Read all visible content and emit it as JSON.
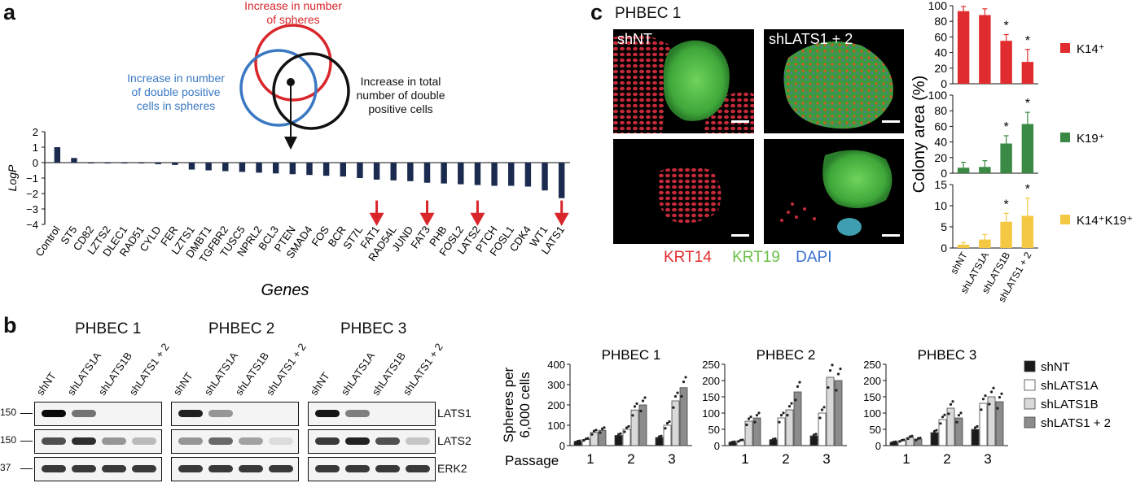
{
  "panels": {
    "a": "a",
    "b": "b",
    "c": "c"
  },
  "venn": {
    "red_label": "Increase in number of spheres",
    "red_lines": [
      "Increase in number",
      "of spheres"
    ],
    "blue_lines": [
      "Increase in number",
      "of double positive",
      "cells in spheres"
    ],
    "black_lines": [
      "Increase in total",
      "number of double",
      "positive cells"
    ],
    "colors": {
      "red": "#d9262b",
      "blue": "#3a78c2",
      "black": "#111111"
    }
  },
  "chart_data": [
    {
      "type": "bar",
      "panel": "a",
      "categories": [
        "Control",
        "ST5",
        "CD82",
        "LZTS2",
        "DLEC1",
        "RAD51",
        "CYLD",
        "FER",
        "LZTS1",
        "DMBT1",
        "TGFBR2",
        "TUSC5",
        "NPRL2",
        "BCL3",
        "PTEN",
        "SMAD4",
        "FOS",
        "BCR",
        "ST7L",
        "FAT1",
        "RAD54L",
        "JUND",
        "FAT3",
        "PHB",
        "FOSL2",
        "LATS2",
        "PTCH",
        "FOSL1",
        "CDK4",
        "WT1",
        "LATS1"
      ],
      "values": [
        1.0,
        0.3,
        -0.05,
        -0.05,
        -0.05,
        -0.05,
        -0.1,
        -0.15,
        -0.45,
        -0.5,
        -0.55,
        -0.6,
        -0.65,
        -0.7,
        -0.75,
        -0.8,
        -0.85,
        -0.9,
        -1.0,
        -1.1,
        -1.15,
        -1.2,
        -1.3,
        -1.35,
        -1.4,
        -1.45,
        -1.5,
        -1.5,
        -1.55,
        -1.8,
        -2.3
      ],
      "highlighted": [
        "FAT1",
        "FAT3",
        "LATS2",
        "LATS1"
      ],
      "xlabel": "Genes",
      "ylabel": "LogP",
      "ylim": [
        -4,
        2
      ],
      "yticks": [
        "2",
        "1",
        "0",
        "−1",
        "−2",
        "−3",
        "−4"
      ],
      "bar_color": "#1b2a4f",
      "arrow_color": "#d9262b"
    },
    {
      "type": "bar",
      "panel": "c",
      "ylabel": "Colony area (%)",
      "categories": [
        "shNT",
        "shLATS1A",
        "shLATS1B",
        "shLATS1 + 2"
      ],
      "subplots": [
        {
          "name": "K14",
          "sup": "+",
          "legend": "K14⁺",
          "color": "#e02b2f",
          "ylim": [
            0,
            100
          ],
          "yticks": [
            "0",
            "20",
            "40",
            "60",
            "80",
            "100"
          ],
          "values": [
            93,
            88,
            55,
            28
          ],
          "errors": [
            6,
            8,
            8,
            16
          ],
          "significant": [
            false,
            false,
            true,
            true
          ]
        },
        {
          "name": "K19",
          "sup": "+",
          "legend": "K19⁺",
          "color": "#3a8a45",
          "ylim": [
            0,
            100
          ],
          "yticks": [
            "0",
            "20",
            "40",
            "60",
            "80",
            "100"
          ],
          "values": [
            7,
            8,
            38,
            63
          ],
          "errors": [
            7,
            8,
            10,
            15
          ],
          "significant": [
            false,
            false,
            true,
            true
          ]
        },
        {
          "name": "K14+K19+",
          "legend": "K14⁺K19⁺",
          "color": "#f4c842",
          "ylim": [
            0,
            15
          ],
          "yticks": [
            "0",
            "5",
            "10",
            "15"
          ],
          "values": [
            0.8,
            2,
            6.2,
            7.6
          ],
          "errors": [
            0.5,
            1.2,
            2,
            4.2
          ],
          "significant": [
            false,
            false,
            true,
            true
          ]
        }
      ],
      "significance_marker": "*"
    },
    {
      "type": "bar",
      "panel": "b",
      "title": "PHBEC 1",
      "xlabel": "Passage",
      "ylabel": "Spheres per 6,000 cells",
      "categories": [
        "1",
        "2",
        "3"
      ],
      "ylim": [
        0,
        400
      ],
      "yticks": [
        "0",
        "100",
        "200",
        "300",
        "400"
      ],
      "series": [
        {
          "name": "shNT",
          "values": [
            20,
            50,
            40
          ]
        },
        {
          "name": "shLATS1A",
          "values": [
            30,
            80,
            100
          ]
        },
        {
          "name": "shLATS1B",
          "values": [
            65,
            175,
            220
          ]
        },
        {
          "name": "shLATS1 + 2",
          "values": [
            75,
            200,
            285
          ]
        }
      ]
    },
    {
      "type": "bar",
      "panel": "b",
      "title": "PHBEC 2",
      "categories": [
        "1",
        "2",
        "3"
      ],
      "ylim": [
        0,
        250
      ],
      "yticks": [
        "0",
        "50",
        "100",
        "150",
        "200",
        "250"
      ],
      "series": [
        {
          "name": "shNT",
          "values": [
            10,
            18,
            30
          ]
        },
        {
          "name": "shLATS1A",
          "values": [
            15,
            85,
            100
          ]
        },
        {
          "name": "shLATS1B",
          "values": [
            75,
            110,
            210
          ]
        },
        {
          "name": "shLATS1 + 2",
          "values": [
            85,
            165,
            200
          ]
        }
      ]
    },
    {
      "type": "bar",
      "panel": "b",
      "title": "PHBEC 3",
      "categories": [
        "1",
        "2",
        "3"
      ],
      "ylim": [
        0,
        250
      ],
      "yticks": [
        "0",
        "50",
        "100",
        "150",
        "200",
        "250"
      ],
      "series": [
        {
          "name": "shNT",
          "values": [
            10,
            40,
            50
          ]
        },
        {
          "name": "shLATS1A",
          "values": [
            15,
            80,
            130
          ]
        },
        {
          "name": "shLATS1B",
          "values": [
            25,
            115,
            150
          ]
        },
        {
          "name": "shLATS1 + 2",
          "values": [
            20,
            85,
            135
          ]
        }
      ]
    }
  ],
  "sphere_legend": {
    "items": [
      "shNT",
      "shLATS1A",
      "shLATS1B",
      "shLATS1 + 2"
    ],
    "colors": [
      "#1a1a1a",
      "#ffffff",
      "#d9d9d9",
      "#8c8c8c"
    ]
  },
  "blots": {
    "groups": [
      "PHBEC 1",
      "PHBEC 2",
      "PHBEC 3"
    ],
    "lanes": [
      "shNT",
      "shLATS1A",
      "shLATS1B",
      "shLATS1 + 2"
    ],
    "rows": [
      "LATS1",
      "LATS2",
      "ERK2"
    ],
    "markers": [
      "150",
      "150",
      "37"
    ]
  },
  "micrographs": {
    "title": "PHBEC 1",
    "top_left_label": "shNT",
    "top_right_label": "shLATS1 + 2",
    "stains": [
      {
        "label": "KRT14",
        "color": "#e02b2f"
      },
      {
        "label": "KRT19",
        "color": "#6cc04a"
      },
      {
        "label": "DAPI",
        "color": "#3a6fd1"
      }
    ]
  }
}
